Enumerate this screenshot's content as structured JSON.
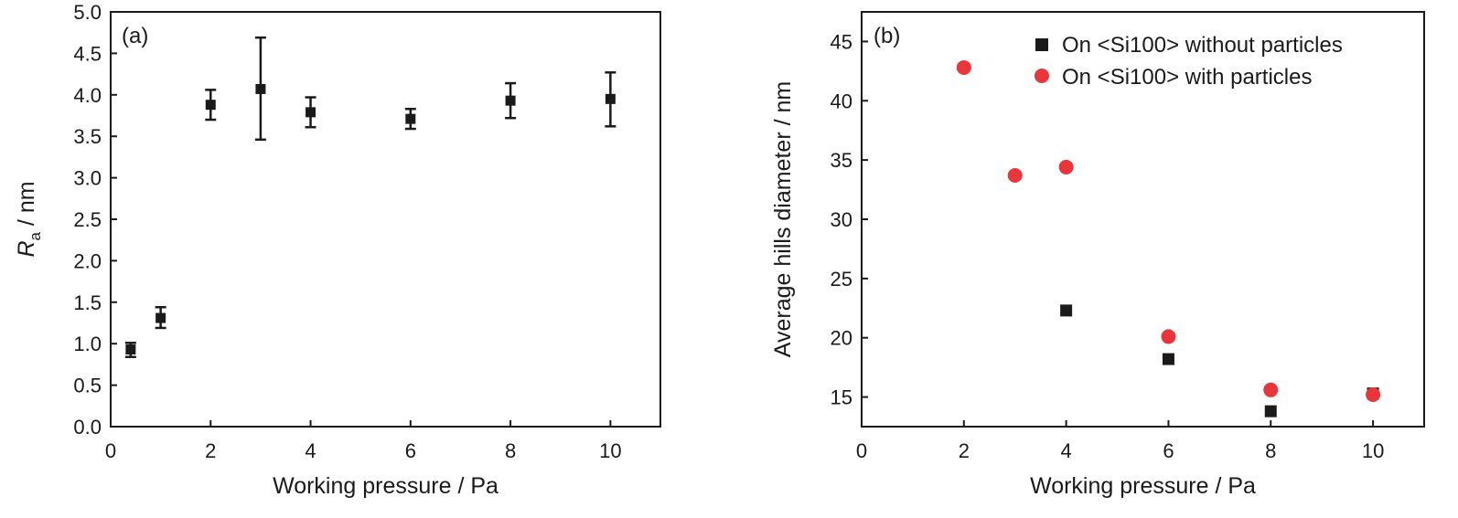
{
  "chart_data": [
    {
      "type": "scatter",
      "panel_label": "(a)",
      "xlabel": "Working pressure / Pa",
      "ylabel": {
        "main": "R",
        "subscript": "a",
        "suffix": " / nm"
      },
      "xlim": [
        0,
        11
      ],
      "ylim": [
        0,
        5.0
      ],
      "xticks": [
        0,
        2,
        4,
        6,
        8,
        10
      ],
      "xtick_labels": [
        "0",
        "2",
        "4",
        "6",
        "8",
        "10"
      ],
      "yticks": [
        0,
        0.5,
        1.0,
        1.5,
        2.0,
        2.5,
        3.0,
        3.5,
        4.0,
        4.5,
        5.0
      ],
      "ytick_labels": [
        "0.0",
        "0.5",
        "1.0",
        "1.5",
        "2.0",
        "2.5",
        "3.0",
        "3.5",
        "4.0",
        "4.5",
        "5.0"
      ],
      "grid": false,
      "series": [
        {
          "marker": "square",
          "color": "#1a1a1a",
          "points": [
            {
              "x": 0.4,
              "y": 0.93,
              "err_low": 0.84,
              "err_high": 1.01
            },
            {
              "x": 1.0,
              "y": 1.31,
              "err_low": 1.19,
              "err_high": 1.44
            },
            {
              "x": 2.0,
              "y": 3.88,
              "err_low": 3.7,
              "err_high": 4.06
            },
            {
              "x": 3.0,
              "y": 4.07,
              "err_low": 3.46,
              "err_high": 4.69
            },
            {
              "x": 4.0,
              "y": 3.79,
              "err_low": 3.61,
              "err_high": 3.97
            },
            {
              "x": 6.0,
              "y": 3.71,
              "err_low": 3.59,
              "err_high": 3.83
            },
            {
              "x": 8.0,
              "y": 3.93,
              "err_low": 3.72,
              "err_high": 4.14
            },
            {
              "x": 10.0,
              "y": 3.95,
              "err_low": 3.62,
              "err_high": 4.27
            }
          ]
        }
      ]
    },
    {
      "type": "scatter",
      "panel_label": "(b)",
      "xlabel": "Working pressure / Pa",
      "ylabel": "Average hills diameter / nm",
      "xlim": [
        0,
        11
      ],
      "ylim": [
        12.5,
        47.5
      ],
      "xticks": [
        0,
        2,
        4,
        6,
        8,
        10
      ],
      "xtick_labels": [
        "0",
        "2",
        "4",
        "6",
        "8",
        "10"
      ],
      "yticks": [
        15,
        20,
        25,
        30,
        35,
        40,
        45
      ],
      "ytick_labels": [
        "15",
        "20",
        "25",
        "30",
        "35",
        "40",
        "45"
      ],
      "grid": false,
      "legend_position": "top-right",
      "series": [
        {
          "name": "On <Si100> without particles",
          "marker": "square",
          "color": "#1a1a1a",
          "points": [
            {
              "x": 4,
              "y": 22.3
            },
            {
              "x": 6,
              "y": 18.2
            },
            {
              "x": 8,
              "y": 13.8
            },
            {
              "x": 10,
              "y": 15.3
            }
          ]
        },
        {
          "name": "On <Si100> with particles",
          "marker": "circle",
          "color": "#e8363a",
          "points": [
            {
              "x": 2,
              "y": 42.8
            },
            {
              "x": 3,
              "y": 33.7
            },
            {
              "x": 4,
              "y": 34.4
            },
            {
              "x": 6,
              "y": 20.1
            },
            {
              "x": 8,
              "y": 15.6
            },
            {
              "x": 10,
              "y": 15.2
            }
          ]
        }
      ]
    }
  ]
}
